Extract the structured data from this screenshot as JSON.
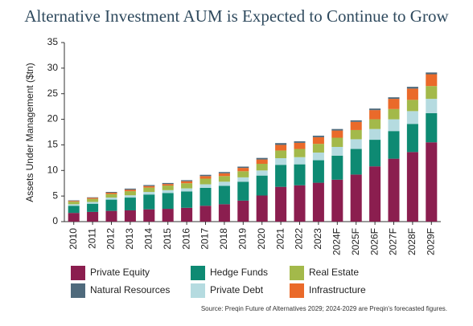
{
  "chart_data": {
    "type": "stacked_bar",
    "title": "Alternative Investment AUM is Expected to Continue to Grow",
    "y_label": "Assets Under Management ($tn)",
    "source": "Source: Preqin Future of Alternatives 2029; 2024-2029 are Preqin's forecasted figures.",
    "categories": [
      "2010",
      "2011",
      "2012",
      "2013",
      "2014",
      "2015",
      "2016",
      "2017",
      "2018",
      "2019",
      "2020",
      "2021",
      "2022",
      "2023",
      "2024F",
      "2025F",
      "2026F",
      "2027F",
      "2028F",
      "2029F"
    ],
    "series": [
      {
        "name": "Private Equity",
        "color": "#8b1e4f",
        "values": [
          1.7,
          1.9,
          2.1,
          2.2,
          2.4,
          2.5,
          2.7,
          3.1,
          3.4,
          4.1,
          5.1,
          6.8,
          7.1,
          7.6,
          8.2,
          9.2,
          10.8,
          12.3,
          13.6,
          15.5
        ]
      },
      {
        "name": "Hedge Funds",
        "color": "#0e8a73",
        "values": [
          1.4,
          1.6,
          2.2,
          2.5,
          2.9,
          3.1,
          3.2,
          3.5,
          3.6,
          3.7,
          3.9,
          4.3,
          4.1,
          4.4,
          4.7,
          5.0,
          5.2,
          5.4,
          5.5,
          5.7
        ]
      },
      {
        "name": "Real Estate",
        "color": "#a3b94a",
        "values": [
          0.5,
          0.6,
          0.7,
          0.8,
          0.85,
          0.9,
          1.0,
          1.1,
          1.1,
          1.2,
          1.3,
          1.5,
          1.6,
          1.7,
          1.8,
          1.8,
          1.9,
          2.0,
          2.2,
          2.5
        ]
      },
      {
        "name": "Natural Resources",
        "color": "#4f6a7c",
        "values": [
          0.1,
          0.1,
          0.15,
          0.2,
          0.2,
          0.2,
          0.2,
          0.25,
          0.25,
          0.25,
          0.3,
          0.35,
          0.3,
          0.3,
          0.3,
          0.3,
          0.3,
          0.3,
          0.35,
          0.35
        ]
      },
      {
        "name": "Private Debt",
        "color": "#b5dbe0",
        "values": [
          0.3,
          0.35,
          0.4,
          0.45,
          0.5,
          0.55,
          0.6,
          0.7,
          0.8,
          0.85,
          1.0,
          1.3,
          1.4,
          1.5,
          1.7,
          1.9,
          2.1,
          2.3,
          2.5,
          2.8
        ]
      },
      {
        "name": "Infrastructure",
        "color": "#ea6a2a",
        "values": [
          0.15,
          0.2,
          0.25,
          0.3,
          0.3,
          0.3,
          0.4,
          0.5,
          0.55,
          0.65,
          0.85,
          1.1,
          1.2,
          1.3,
          1.4,
          1.6,
          1.8,
          2.0,
          2.2,
          2.3
        ]
      }
    ],
    "ylim": [
      0,
      35
    ],
    "yticks": [
      0,
      5,
      10,
      15,
      20,
      25,
      30,
      35
    ]
  }
}
